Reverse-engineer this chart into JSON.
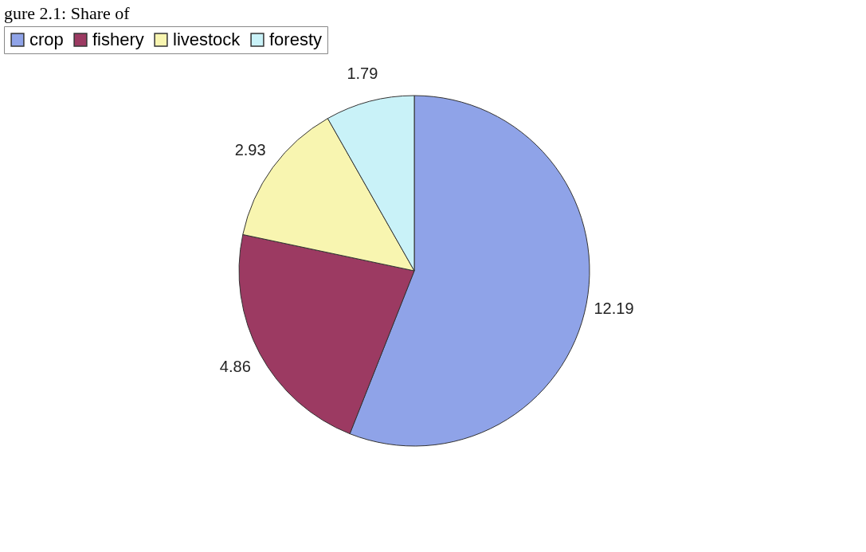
{
  "chart_data": {
    "type": "pie",
    "title": "gure 2.1: Share of",
    "categories": [
      "crop",
      "fishery",
      "livestock",
      "foresty"
    ],
    "values": [
      12.19,
      4.86,
      2.93,
      1.79
    ],
    "colors": [
      "#8fa3e8",
      "#9c3a62",
      "#f8f5b0",
      "#c9f2f8"
    ],
    "data_labels": true,
    "legend": "top"
  }
}
